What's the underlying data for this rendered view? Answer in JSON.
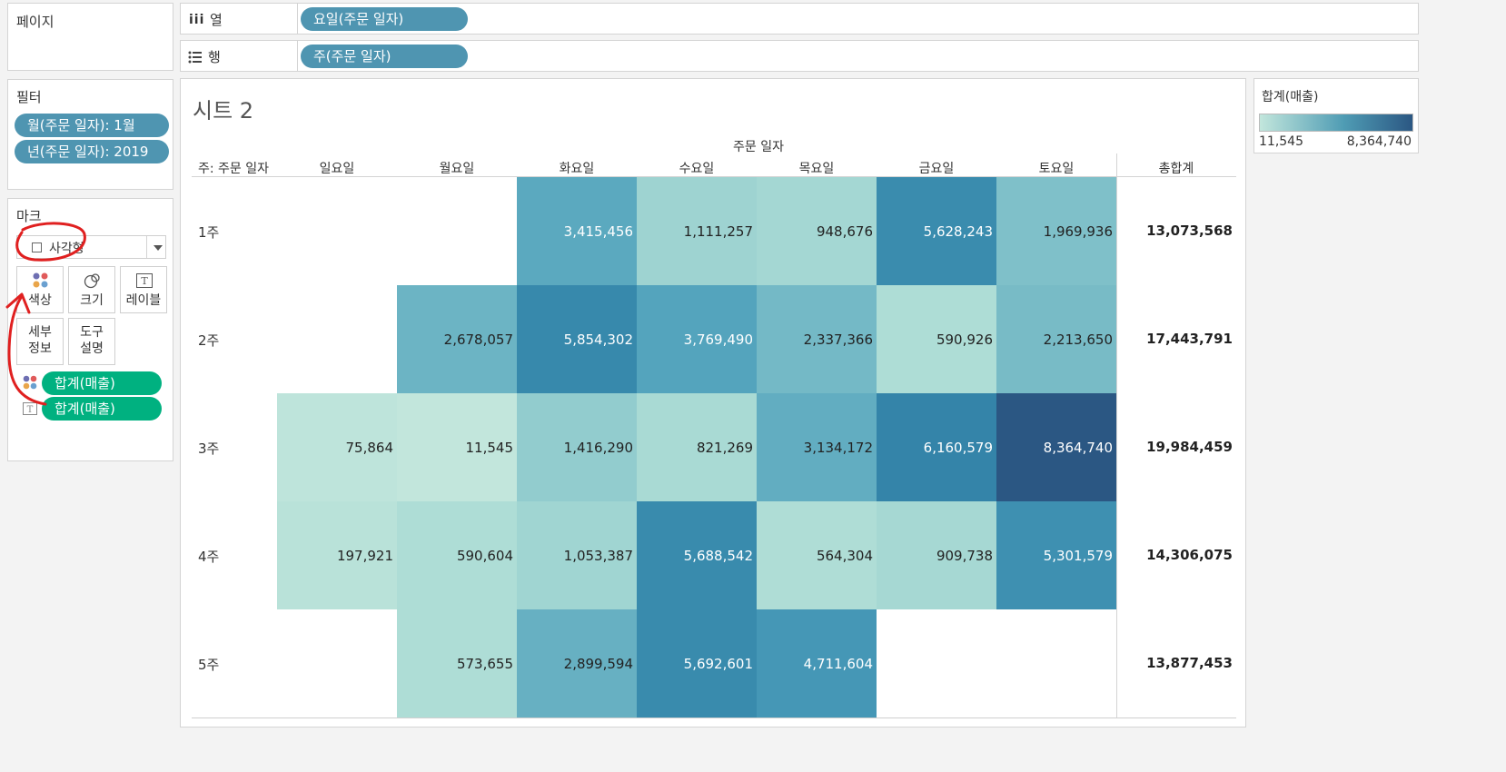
{
  "shelves": {
    "pages_label": "페이지",
    "columns_label": "열",
    "columns_pill": "요일(주문 일자)",
    "rows_label": "행",
    "rows_pill": "주(주문 일자)"
  },
  "filters": {
    "title": "필터",
    "items": [
      "월(주문 일자): 1월",
      "년(주문 일자): 2019"
    ]
  },
  "marks": {
    "title": "마크",
    "mark_type": "사각형",
    "buttons": [
      "색상",
      "크기",
      "레이블"
    ],
    "detail_line1": "세부",
    "detail_line2": "정보",
    "tooltip_line1": "도구",
    "tooltip_line2": "설명",
    "fields": [
      "합계(매출)",
      "합계(매출)"
    ]
  },
  "sheet": {
    "title": "시트 2",
    "col_group_header": "주문 일자",
    "row_header": "주: 주문 일자",
    "columns": [
      "일요일",
      "월요일",
      "화요일",
      "수요일",
      "목요일",
      "금요일",
      "토요일"
    ],
    "total_header": "총합계",
    "rows": [
      {
        "label": "1주",
        "values": [
          null,
          null,
          "3,415,456",
          "1,111,257",
          "948,676",
          "5,628,243",
          "1,969,936"
        ],
        "total": "13,073,568"
      },
      {
        "label": "2주",
        "values": [
          null,
          "2,678,057",
          "5,854,302",
          "3,769,490",
          "2,337,366",
          "590,926",
          "2,213,650"
        ],
        "total": "17,443,791"
      },
      {
        "label": "3주",
        "values": [
          "75,864",
          "11,545",
          "1,416,290",
          "821,269",
          "3,134,172",
          "6,160,579",
          "8,364,740"
        ],
        "total": "19,984,459"
      },
      {
        "label": "4주",
        "values": [
          "197,921",
          "590,604",
          "1,053,387",
          "5,688,542",
          "564,304",
          "909,738",
          "5,301,579"
        ],
        "total": "14,306,075"
      },
      {
        "label": "5주",
        "values": [
          null,
          "573,655",
          "2,899,594",
          "5,692,601",
          "4,711,604",
          null,
          null
        ],
        "total": "13,877,453"
      }
    ]
  },
  "legend": {
    "title": "합계(매출)",
    "min": "11,545",
    "max": "8,364,740",
    "min_color": "#c2e6dc",
    "max_color": "#2b5783"
  }
}
